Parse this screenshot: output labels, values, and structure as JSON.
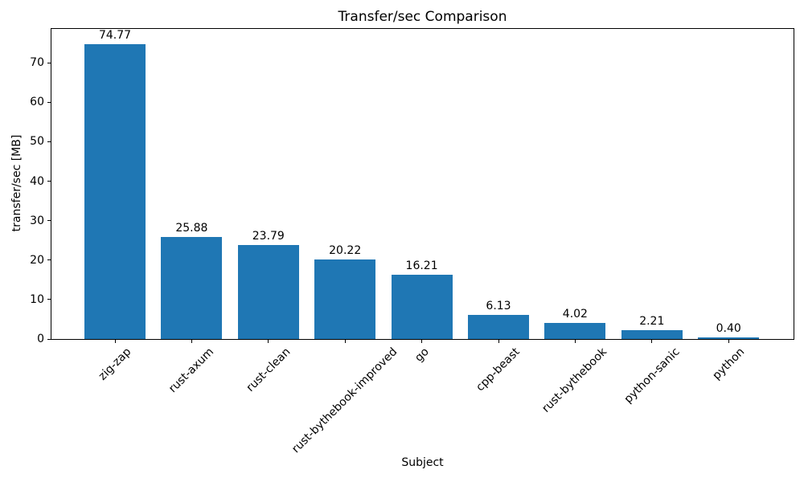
{
  "chart_data": {
    "type": "bar",
    "title": "Transfer/sec Comparison",
    "xlabel": "Subject",
    "ylabel": "transfer/sec [MB]",
    "categories": [
      "zig-zap",
      "rust-axum",
      "rust-clean",
      "rust-bythebook-improved",
      "go",
      "cpp-beast",
      "rust-bythebook",
      "python-sanic",
      "python"
    ],
    "values": [
      74.77,
      25.88,
      23.79,
      20.22,
      16.21,
      6.13,
      4.02,
      2.21,
      0.4
    ],
    "bar_labels": [
      "74.77",
      "25.88",
      "23.79",
      "20.22",
      "16.21",
      "6.13",
      "4.02",
      "2.21",
      "0.40"
    ],
    "yticks": [
      0,
      10,
      20,
      30,
      40,
      50,
      60,
      70
    ],
    "ylim": [
      0,
      78.8
    ],
    "xtick_rotation_deg": 45,
    "bar_color": "#1f77b4",
    "text_color": "#000000",
    "spine_color": "#000000",
    "background_color": "#ffffff",
    "grid": false,
    "legend": "none"
  }
}
